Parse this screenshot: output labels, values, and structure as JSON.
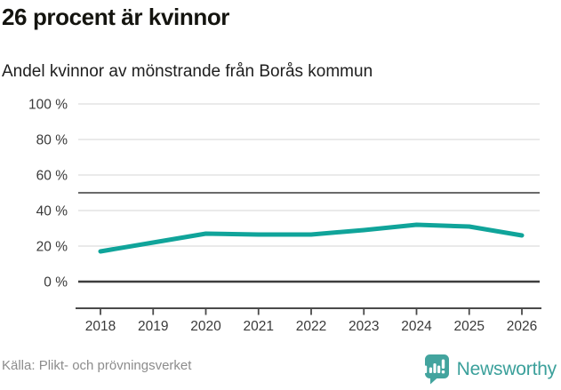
{
  "chart": {
    "title": "26 procent är kvinnor",
    "subtitle": "Andel kvinnor av mönstrande från Borås kommun"
  },
  "chart_data": {
    "type": "line",
    "title": "26 procent är kvinnor",
    "subtitle": "Andel kvinnor av mönstrande från Borås kommun",
    "x": [
      "2018",
      "2019",
      "2020",
      "2021",
      "2022",
      "2023",
      "2024",
      "2025",
      "2026"
    ],
    "series": [
      {
        "name": "Andel kvinnor av mönstrande från Borås kommun",
        "values": [
          17,
          22,
          27,
          26.5,
          26.5,
          29,
          32,
          31,
          26
        ]
      }
    ],
    "unit": "%",
    "ylim": [
      0,
      100
    ],
    "yticks": [
      0,
      20,
      40,
      60,
      80,
      100
    ],
    "ytick_labels": [
      "0 %",
      "20 %",
      "40 %",
      "60 %",
      "80 %",
      "100 %"
    ],
    "reference_line": 50,
    "grid": true,
    "legend": "none",
    "line_color": "#10a49a"
  },
  "footer": {
    "source": "Källa: Plikt- och prövningsverket",
    "brand": "Newsworthy"
  },
  "colors": {
    "line": "#10a49a",
    "gridline": "#e4e4e4",
    "reference_line": "#6a6a6a",
    "zero_line": "#3d3d3d",
    "axis": "#4a4a4a",
    "tick_text": "#3a3a3a",
    "title_text": "#14140f",
    "source_text": "#8c8c8c",
    "brand_teal": "#3ba09b"
  }
}
